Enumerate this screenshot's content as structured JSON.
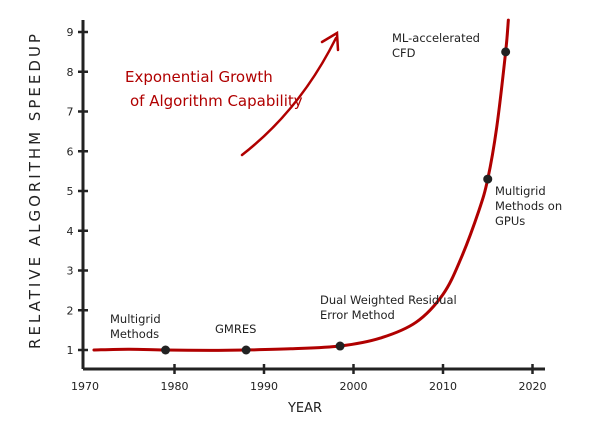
{
  "chart_data": {
    "type": "line",
    "xlabel": "YEAR",
    "ylabel": "RELATIVE ALGORITHM SPEEDUP",
    "xlim": [
      1970,
      2020
    ],
    "ylim": [
      0.5,
      9.3
    ],
    "x_ticks": [
      "1970",
      "1980",
      "1990",
      "2000",
      "2010",
      "2020"
    ],
    "y_ticks": [
      "1",
      "2",
      "3",
      "4",
      "5",
      "6",
      "7",
      "8",
      "9"
    ],
    "grid": false,
    "curve": {
      "color": "#b00000",
      "x": [
        1971,
        1975,
        1979,
        1984,
        1988,
        1993,
        1998.5,
        2003,
        2007,
        2010,
        2012,
        2014,
        2015,
        2016,
        2017,
        2017.3
      ],
      "y": [
        1.0,
        1.02,
        1.0,
        0.99,
        1.0,
        1.03,
        1.1,
        1.3,
        1.7,
        2.4,
        3.3,
        4.5,
        5.3,
        6.6,
        8.5,
        9.3
      ]
    },
    "points": [
      {
        "x": 1979,
        "y": 1.0,
        "label": "Multigrid Methods"
      },
      {
        "x": 1988,
        "y": 1.0,
        "label": "GMRES"
      },
      {
        "x": 1998.5,
        "y": 1.1,
        "label": "Dual Weighted Residual Error Method"
      },
      {
        "x": 2015,
        "y": 5.3,
        "label": "Multigrid Methods on GPUs"
      },
      {
        "x": 2017,
        "y": 8.5,
        "label": "ML-accelerated CFD"
      }
    ],
    "annotation": {
      "lines": [
        "Exponential Growth",
        "of Algorithm Capability"
      ],
      "color": "#b00000"
    }
  }
}
